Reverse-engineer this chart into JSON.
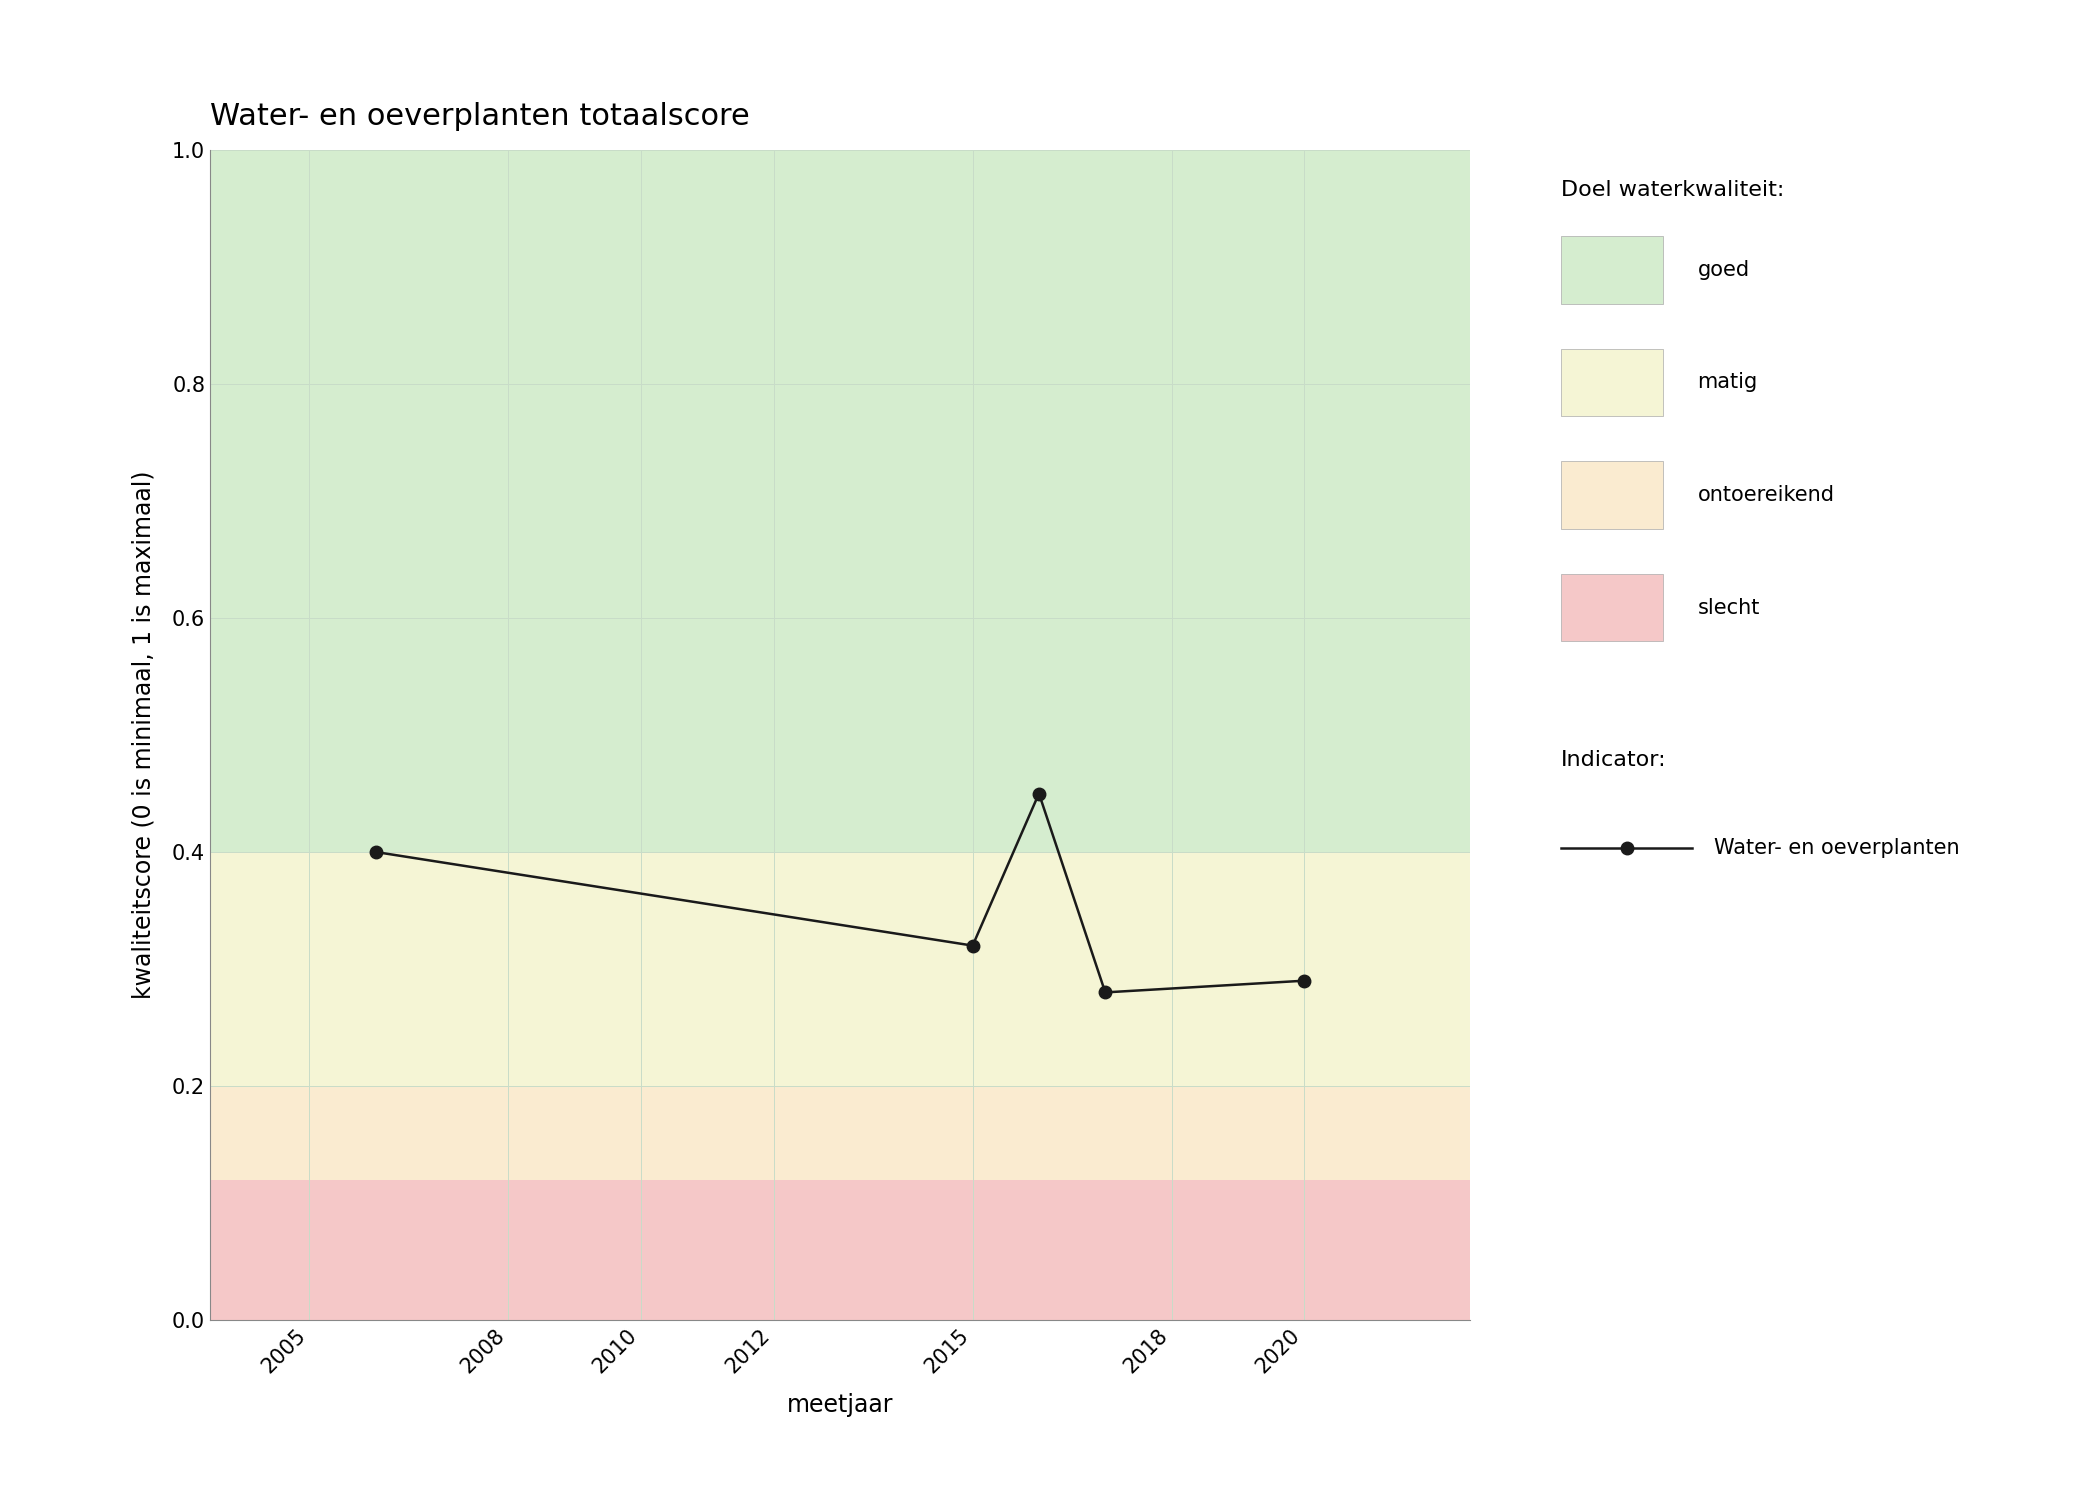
{
  "title": "Water- en oeverplanten totaalscore",
  "xlabel": "meetjaar",
  "ylabel": "kwaliteitscore (0 is minimaal, 1 is maximaal)",
  "xlim": [
    2003.5,
    2022.5
  ],
  "ylim": [
    0.0,
    1.0
  ],
  "xticks": [
    2005,
    2008,
    2010,
    2012,
    2015,
    2018,
    2020
  ],
  "yticks": [
    0.0,
    0.2,
    0.4,
    0.6,
    0.8,
    1.0
  ],
  "data_x": [
    2006,
    2015,
    2016,
    2017,
    2020
  ],
  "data_y": [
    0.4,
    0.32,
    0.45,
    0.28,
    0.29
  ],
  "zone_goed": {
    "ymin": 0.4,
    "ymax": 1.0,
    "color": "#d5edcf",
    "label": "goed"
  },
  "zone_matig": {
    "ymin": 0.2,
    "ymax": 0.4,
    "color": "#f5f5d5",
    "label": "matig"
  },
  "zone_ontoereikend": {
    "ymin": 0.12,
    "ymax": 0.2,
    "color": "#faebd0",
    "label": "ontoereikend"
  },
  "zone_slecht": {
    "ymin": 0.0,
    "ymax": 0.12,
    "color": "#f5c8c8",
    "label": "slecht"
  },
  "line_color": "#1a1a1a",
  "marker": "o",
  "markersize": 9,
  "linewidth": 1.8,
  "grid_color": "#c8dcc8",
  "grid_linewidth": 0.7,
  "legend_title_quality": "Doel waterkwaliteit:",
  "legend_title_indicator": "Indicator:",
  "legend_indicator_label": "Water- en oeverplanten",
  "title_fontsize": 22,
  "label_fontsize": 17,
  "tick_fontsize": 15,
  "legend_fontsize": 15,
  "legend_title_fontsize": 16,
  "bg_color": "#f8f8f8"
}
